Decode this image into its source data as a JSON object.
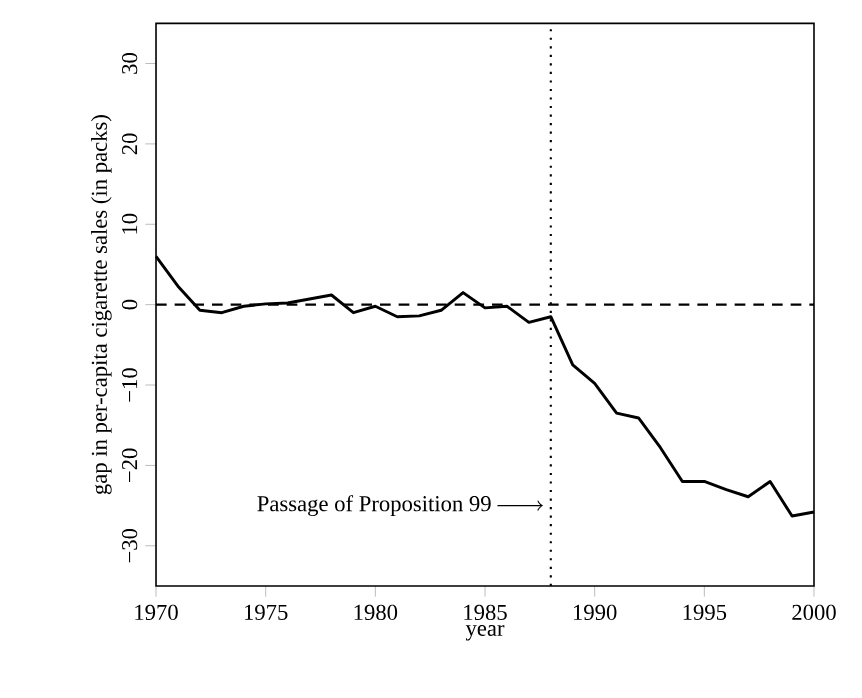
{
  "chart_data": {
    "type": "line",
    "xlabel": "year",
    "ylabel": "gap in per-capita cigarette sales (in packs)",
    "x": [
      1970,
      1971,
      1972,
      1973,
      1974,
      1975,
      1976,
      1977,
      1978,
      1979,
      1980,
      1981,
      1982,
      1983,
      1984,
      1985,
      1986,
      1987,
      1988,
      1989,
      1990,
      1991,
      1992,
      1993,
      1994,
      1995,
      1996,
      1997,
      1998,
      1999,
      2000
    ],
    "series": [
      {
        "color": "#000000",
        "values": [
          6.0,
          2.3,
          -0.7,
          -1.0,
          -0.2,
          0.1,
          0.2,
          0.7,
          1.2,
          -1.0,
          -0.2,
          -1.5,
          -1.4,
          -0.7,
          1.5,
          -0.4,
          -0.2,
          -2.2,
          -1.5,
          -7.5,
          -9.8,
          -13.5,
          -14.1,
          -17.8,
          -22.0,
          -22.0,
          -23.0,
          -23.9,
          -22.0,
          -26.3,
          -25.8
        ]
      }
    ],
    "xlim": [
      1970,
      2000
    ],
    "ylim": [
      -35,
      35
    ],
    "xticks": [
      1970,
      1975,
      1980,
      1985,
      1990,
      1995,
      2000
    ],
    "yticks": [
      {
        "value": -30,
        "label": "−30"
      },
      {
        "value": -20,
        "label": "−20"
      },
      {
        "value": -10,
        "label": "−10"
      },
      0,
      10,
      20,
      30
    ],
    "ref_lines": [
      {
        "axis": "y",
        "value": 0,
        "color": "#000000",
        "line_style": "dashed"
      },
      {
        "axis": "x",
        "value": 1988,
        "color": "#000000",
        "line_style": "dotted"
      }
    ],
    "annotations": [
      {
        "text": "Passage of Proposition 99",
        "x": 1988,
        "y": -25
      }
    ],
    "marker": "none",
    "line_style": "solid"
  }
}
